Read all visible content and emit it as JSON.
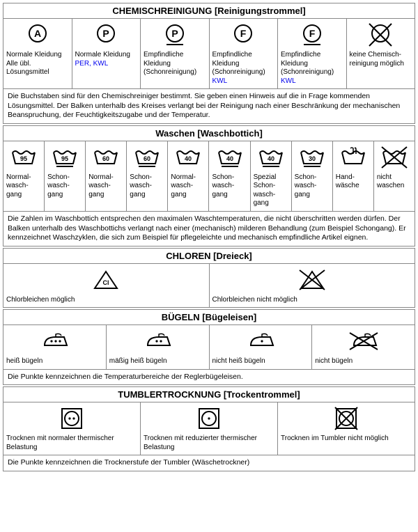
{
  "colors": {
    "stroke": "#000000",
    "link": "#0000ee",
    "bg": "#ffffff",
    "border": "#888888"
  },
  "chem": {
    "title": "CHEMISCHREINIGUNG [Reinigungstrommel]",
    "items": [
      {
        "letter": "A",
        "bar": false,
        "crossed": false,
        "t1": "Normale Kleidung",
        "t2": "Alle übl. Lösungsmittel",
        "link": ""
      },
      {
        "letter": "P",
        "bar": false,
        "crossed": false,
        "t1": "Normale Kleidung",
        "t2": "",
        "link": "PER, KWL"
      },
      {
        "letter": "P",
        "bar": true,
        "crossed": false,
        "t1": "Empfindliche Kleidung",
        "t2": "(Schonreinigung)",
        "link": ""
      },
      {
        "letter": "F",
        "bar": false,
        "crossed": false,
        "t1": "Empfindliche Kleidung",
        "t2": "(Schonreinigung)",
        "link": "KWL"
      },
      {
        "letter": "F",
        "bar": true,
        "crossed": false,
        "t1": "Empfindliche Kleidung",
        "t2": "(Schonreinigung)",
        "link": "KWL"
      },
      {
        "letter": "",
        "bar": false,
        "crossed": true,
        "t1": "keine Chemisch-reinigung möglich",
        "t2": "",
        "link": ""
      }
    ],
    "note": "Die Buchstaben sind für den Chemischreiniger bestimmt.\nSie geben einen Hinweis auf die in Frage kommenden Lösungsmittel.\nDer Balken unterhalb des Kreises verlangt bei der Reinigung nach einer Beschränkung der mechanischen Beanspruchung, der Feuchtigkeitszugabe und der Temperatur."
  },
  "wash": {
    "title": "Waschen [Waschbottich]",
    "items": [
      {
        "temp": "95",
        "bar": false,
        "hand": false,
        "crossed": false,
        "label": "Normal-wasch-gang"
      },
      {
        "temp": "95",
        "bar": true,
        "hand": false,
        "crossed": false,
        "label": "Schon-wasch-gang"
      },
      {
        "temp": "60",
        "bar": false,
        "hand": false,
        "crossed": false,
        "label": "Normal-wasch-gang"
      },
      {
        "temp": "60",
        "bar": true,
        "hand": false,
        "crossed": false,
        "label": "Schon-wasch-gang"
      },
      {
        "temp": "40",
        "bar": false,
        "hand": false,
        "crossed": false,
        "label": "Normal-wasch-gang"
      },
      {
        "temp": "40",
        "bar": true,
        "hand": false,
        "crossed": false,
        "label": "Schon-wasch-gang"
      },
      {
        "temp": "40",
        "bar": true,
        "hand": false,
        "crossed": false,
        "label": "Spezial Schon-wasch-gang"
      },
      {
        "temp": "30",
        "bar": true,
        "hand": false,
        "crossed": false,
        "label": "Schon-wasch-gang"
      },
      {
        "temp": "",
        "bar": false,
        "hand": true,
        "crossed": false,
        "label": "Hand-wäsche"
      },
      {
        "temp": "",
        "bar": false,
        "hand": false,
        "crossed": true,
        "label": "nicht waschen"
      }
    ],
    "note": "Die Zahlen im Waschbottich entsprechen den maximalen Waschtemperaturen,\ndie nicht überschritten werden dürfen.\nDer Balken unterhalb des Waschbottichs verlangt nach einer (mechanisch) milderen Behandlung (zum Beispiel Schongang). Er kennzeichnet Waschzyklen, die sich zum Beispiel für pflegeleichte und mechanisch empfindliche Artikel eignen."
  },
  "chlor": {
    "title": "CHLOREN [Dreieck]",
    "items": [
      {
        "crossed": false,
        "cl": true,
        "label": "Chlorbleichen möglich"
      },
      {
        "crossed": true,
        "cl": false,
        "label": "Chlorbleichen nicht möglich"
      }
    ]
  },
  "iron": {
    "title": "BÜGELN [Bügeleisen]",
    "items": [
      {
        "dots": 3,
        "crossed": false,
        "label": "heiß bügeln"
      },
      {
        "dots": 2,
        "crossed": false,
        "label": "mäßig heiß bügeln"
      },
      {
        "dots": 1,
        "crossed": false,
        "label": "nicht heiß bügeln"
      },
      {
        "dots": 0,
        "crossed": true,
        "label": "nicht bügeln"
      }
    ],
    "note": "Die Punkte kennzeichnen die Temperaturbereiche der Reglerbügeleisen."
  },
  "tumble": {
    "title": "TUMBLERTROCKNUNG [Trockentrommel]",
    "items": [
      {
        "dots": 2,
        "crossed": false,
        "label": "Trocknen mit normaler thermischer Belastung"
      },
      {
        "dots": 1,
        "crossed": false,
        "label": "Trocknen mit reduzierter thermischer Belastung"
      },
      {
        "dots": 0,
        "crossed": true,
        "label": "Trocknen im Tumbler nicht möglich"
      }
    ],
    "note": "Die Punkte kennzeichnen die Trocknerstufe der Tumbler (Wäschetrockner)"
  }
}
